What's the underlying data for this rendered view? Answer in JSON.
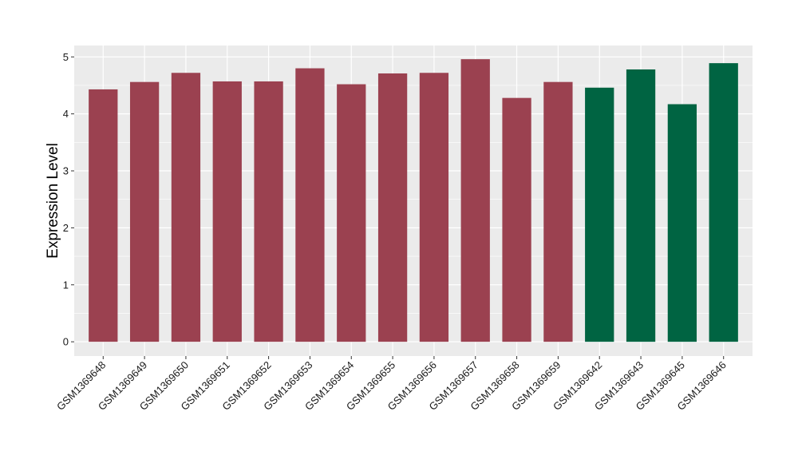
{
  "chart_data": {
    "type": "bar",
    "title": "",
    "xlabel": "",
    "ylabel": "Expression Level",
    "ylim": [
      -0.25,
      5.2
    ],
    "yticks": [
      0,
      1,
      2,
      3,
      4,
      5
    ],
    "grid": true,
    "legend": "none",
    "categories": [
      "GSM1369648",
      "GSM1369649",
      "GSM1369650",
      "GSM1369651",
      "GSM1369652",
      "GSM1369653",
      "GSM1369654",
      "GSM1369655",
      "GSM1369656",
      "GSM1369657",
      "GSM1369658",
      "GSM1369659",
      "GSM1369642",
      "GSM1369643",
      "GSM1369645",
      "GSM1369646"
    ],
    "values": [
      4.43,
      4.56,
      4.72,
      4.57,
      4.57,
      4.8,
      4.52,
      4.71,
      4.72,
      4.96,
      4.28,
      4.56,
      4.46,
      4.78,
      4.17,
      4.89
    ],
    "groups": [
      "a",
      "a",
      "a",
      "a",
      "a",
      "a",
      "a",
      "a",
      "a",
      "a",
      "a",
      "a",
      "b",
      "b",
      "b",
      "b"
    ],
    "group_colors": {
      "a": "#9b4150",
      "b": "#006442"
    },
    "panel_background": "#ebebeb",
    "gridline_color": "#ffffff"
  }
}
